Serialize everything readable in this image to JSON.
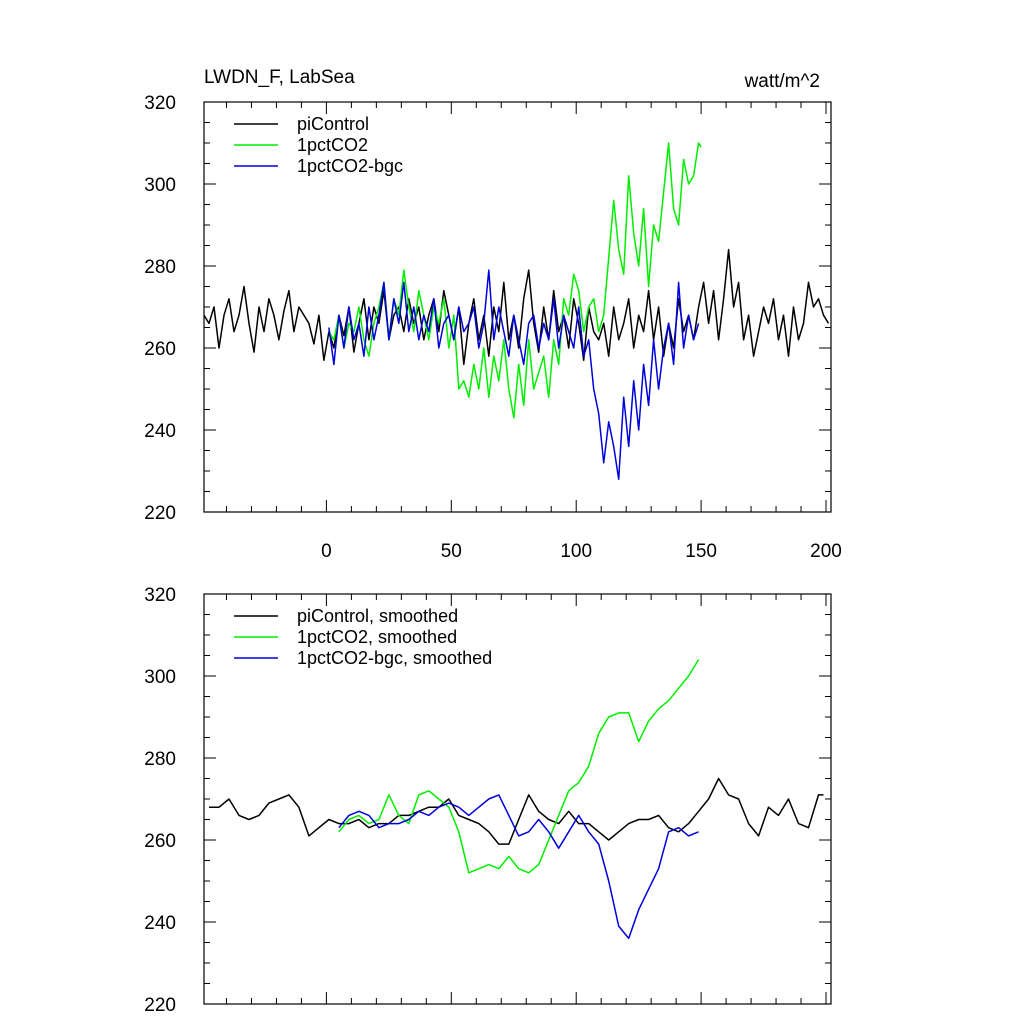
{
  "header": {
    "title": "LWDN_F, LabSea",
    "units": "watt/m^2"
  },
  "colors": {
    "piControl": "#000000",
    "1pctCO2": "#00ee00",
    "1pctCO2-bgc": "#0000dd",
    "axis": "#000000",
    "background": "#ffffff"
  },
  "chart_data": [
    {
      "type": "line",
      "xlim": [
        -49,
        202
      ],
      "ylim": [
        220,
        320
      ],
      "x_ticks": [
        0,
        50,
        100,
        150,
        200
      ],
      "x_tick_labels": [
        "0",
        "50",
        "100",
        "150",
        "200"
      ],
      "y_ticks": [
        220,
        240,
        260,
        280,
        300,
        320
      ],
      "y_tick_labels": [
        "220",
        "240",
        "260",
        "280",
        "300",
        "320"
      ],
      "legend_position": "top-left",
      "series": [
        {
          "name": "piControl",
          "color": "#000000",
          "x": [
            -49,
            -47,
            -45,
            -43,
            -41,
            -39,
            -37,
            -35,
            -33,
            -31,
            -29,
            -27,
            -25,
            -23,
            -21,
            -19,
            -17,
            -15,
            -13,
            -11,
            -9,
            -7,
            -5,
            -3,
            -1,
            1,
            3,
            5,
            7,
            9,
            11,
            13,
            15,
            17,
            19,
            21,
            23,
            25,
            27,
            29,
            31,
            33,
            35,
            37,
            39,
            41,
            43,
            45,
            47,
            49,
            51,
            53,
            55,
            57,
            59,
            61,
            63,
            65,
            67,
            69,
            71,
            73,
            75,
            77,
            79,
            81,
            83,
            85,
            87,
            89,
            91,
            93,
            95,
            97,
            99,
            101,
            103,
            105,
            107,
            109,
            111,
            113,
            115,
            117,
            119,
            121,
            123,
            125,
            127,
            129,
            131,
            133,
            135,
            137,
            139,
            141,
            143,
            145,
            147,
            149,
            151,
            153,
            155,
            157,
            159,
            161,
            163,
            165,
            167,
            169,
            171,
            173,
            175,
            177,
            179,
            181,
            183,
            185,
            187,
            189,
            191,
            193,
            195,
            197,
            199,
            201
          ],
          "y": [
            268,
            266,
            270,
            260,
            268,
            272,
            264,
            268,
            275,
            266,
            259,
            270,
            264,
            272,
            268,
            262,
            269,
            274,
            264,
            270,
            268,
            266,
            261,
            268,
            257,
            264,
            260,
            268,
            263,
            270,
            259,
            266,
            272,
            262,
            270,
            266,
            274,
            262,
            268,
            270,
            264,
            272,
            266,
            270,
            262,
            268,
            272,
            264,
            274,
            268,
            262,
            270,
            256,
            266,
            272,
            262,
            268,
            258,
            270,
            264,
            276,
            262,
            268,
            260,
            272,
            279,
            266,
            259,
            270,
            262,
            274,
            264,
            268,
            260,
            272,
            266,
            257,
            270,
            264,
            262,
            266,
            258,
            270,
            262,
            266,
            272,
            260,
            268,
            264,
            274,
            262,
            270,
            258,
            266,
            260,
            272,
            264,
            268,
            262,
            270,
            276,
            266,
            274,
            262,
            272,
            284,
            270,
            276,
            262,
            268,
            258,
            264,
            270,
            266,
            272,
            262,
            268,
            258,
            270,
            262,
            266,
            276,
            270,
            272,
            268,
            266
          ]
        },
        {
          "name": "1pctCO2",
          "color": "#00ee00",
          "x": [
            1,
            3,
            5,
            7,
            9,
            11,
            13,
            15,
            17,
            19,
            21,
            23,
            25,
            27,
            29,
            31,
            33,
            35,
            37,
            39,
            41,
            43,
            45,
            47,
            49,
            51,
            53,
            55,
            57,
            59,
            61,
            63,
            65,
            67,
            69,
            71,
            73,
            75,
            77,
            79,
            81,
            83,
            85,
            87,
            89,
            91,
            93,
            95,
            97,
            99,
            101,
            103,
            105,
            107,
            109,
            111,
            113,
            115,
            117,
            119,
            121,
            123,
            125,
            127,
            129,
            131,
            133,
            135,
            137,
            139,
            141,
            143,
            145,
            147,
            149,
            150
          ],
          "y": [
            264,
            262,
            268,
            260,
            266,
            264,
            270,
            262,
            258,
            266,
            270,
            276,
            262,
            272,
            268,
            279,
            270,
            264,
            274,
            268,
            262,
            270,
            266,
            272,
            260,
            268,
            250,
            252,
            248,
            256,
            250,
            260,
            248,
            258,
            252,
            262,
            250,
            243,
            256,
            246,
            262,
            250,
            254,
            258,
            248,
            262,
            256,
            272,
            268,
            278,
            274,
            264,
            270,
            272,
            264,
            268,
            282,
            296,
            284,
            278,
            302,
            288,
            280,
            294,
            275,
            290,
            286,
            298,
            310,
            294,
            290,
            306,
            300,
            302,
            310,
            309
          ]
        },
        {
          "name": "1pctCO2-bgc",
          "color": "#0000dd",
          "x": [
            1,
            3,
            5,
            7,
            9,
            11,
            13,
            15,
            17,
            19,
            21,
            23,
            25,
            27,
            29,
            31,
            33,
            35,
            37,
            39,
            41,
            43,
            45,
            47,
            49,
            51,
            53,
            55,
            57,
            59,
            61,
            63,
            65,
            67,
            69,
            71,
            73,
            75,
            77,
            79,
            81,
            83,
            85,
            87,
            89,
            91,
            93,
            95,
            97,
            99,
            101,
            103,
            105,
            107,
            109,
            111,
            113,
            115,
            117,
            119,
            121,
            123,
            125,
            127,
            129,
            131,
            133,
            135,
            137,
            139,
            141,
            143,
            145,
            147,
            149
          ],
          "y": [
            265,
            256,
            268,
            260,
            270,
            262,
            266,
            258,
            270,
            262,
            268,
            276,
            262,
            272,
            266,
            276,
            264,
            270,
            262,
            268,
            264,
            272,
            260,
            266,
            268,
            262,
            270,
            264,
            266,
            270,
            260,
            266,
            279,
            262,
            270,
            264,
            258,
            268,
            262,
            256,
            266,
            268,
            260,
            266,
            262,
            272,
            260,
            268,
            264,
            260,
            270,
            258,
            262,
            250,
            244,
            232,
            242,
            236,
            228,
            248,
            236,
            252,
            240,
            256,
            246,
            262,
            250,
            260,
            266,
            256,
            276,
            260,
            268,
            262,
            266
          ]
        }
      ]
    },
    {
      "type": "line",
      "xlim": [
        -49,
        202
      ],
      "ylim": [
        220,
        320
      ],
      "x_ticks": [
        0,
        50,
        100,
        150,
        200
      ],
      "y_ticks": [
        220,
        240,
        260,
        280,
        300,
        320
      ],
      "y_tick_labels": [
        "220",
        "240",
        "260",
        "280",
        "300",
        "320"
      ],
      "legend_position": "top-left",
      "series": [
        {
          "name": "piControl, smoothed",
          "color": "#000000",
          "x": [
            -47,
            -43,
            -39,
            -35,
            -31,
            -27,
            -23,
            -19,
            -15,
            -11,
            -7,
            -3,
            1,
            5,
            9,
            13,
            17,
            21,
            25,
            29,
            33,
            37,
            41,
            45,
            49,
            53,
            57,
            61,
            65,
            69,
            73,
            77,
            81,
            85,
            89,
            93,
            97,
            101,
            105,
            109,
            113,
            117,
            121,
            125,
            129,
            133,
            137,
            141,
            145,
            149,
            153,
            157,
            161,
            165,
            169,
            173,
            177,
            181,
            185,
            189,
            193,
            197,
            199
          ],
          "y": [
            268,
            268,
            270,
            266,
            265,
            266,
            269,
            270,
            271,
            268,
            261,
            263,
            265,
            264,
            264,
            265,
            263,
            264,
            264,
            266,
            266,
            267,
            268,
            268,
            270,
            266,
            265,
            264,
            262,
            259,
            259,
            265,
            271,
            267,
            265,
            264,
            267,
            264,
            264,
            262,
            260,
            262,
            264,
            265,
            265,
            266,
            263,
            262,
            264,
            267,
            270,
            275,
            271,
            270,
            264,
            261,
            268,
            266,
            270,
            264,
            263,
            271,
            271
          ]
        },
        {
          "name": "1pctCO2, smoothed",
          "color": "#00ee00",
          "x": [
            5,
            9,
            13,
            17,
            21,
            25,
            29,
            33,
            37,
            41,
            45,
            49,
            53,
            57,
            61,
            65,
            69,
            73,
            77,
            81,
            85,
            89,
            93,
            97,
            101,
            105,
            109,
            113,
            117,
            121,
            125,
            129,
            133,
            137,
            141,
            145,
            149
          ],
          "y": [
            262,
            265,
            266,
            264,
            265,
            271,
            266,
            264,
            271,
            272,
            270,
            268,
            262,
            252,
            253,
            254,
            253,
            256,
            253,
            252,
            254,
            260,
            266,
            272,
            274,
            278,
            286,
            290,
            291,
            291,
            284,
            289,
            292,
            294,
            297,
            300,
            304
          ]
        },
        {
          "name": "1pctCO2-bgc, smoothed",
          "color": "#0000dd",
          "x": [
            5,
            9,
            13,
            17,
            21,
            25,
            29,
            33,
            37,
            41,
            45,
            49,
            53,
            57,
            61,
            65,
            69,
            73,
            77,
            81,
            85,
            89,
            93,
            97,
            101,
            105,
            109,
            113,
            117,
            121,
            125,
            129,
            133,
            137,
            141,
            145,
            149
          ],
          "y": [
            263,
            266,
            267,
            266,
            263,
            264,
            264,
            265,
            267,
            266,
            268,
            269,
            268,
            266,
            268,
            270,
            271,
            266,
            261,
            262,
            265,
            262,
            258,
            262,
            266,
            262,
            259,
            250,
            239,
            236,
            243,
            248,
            253,
            262,
            263,
            261,
            262
          ]
        }
      ]
    }
  ]
}
